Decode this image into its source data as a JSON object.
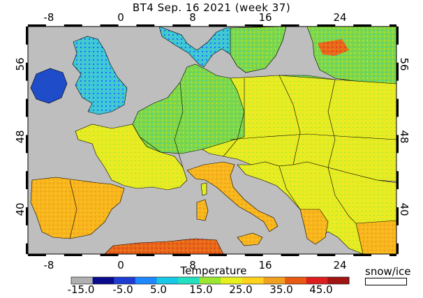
{
  "title": "BT4 Sep. 16 2021 (week 37)",
  "axes": {
    "lon_ticks": [
      "-8",
      "0",
      "8",
      "16",
      "24"
    ],
    "lat_ticks": [
      "56",
      "48",
      "40"
    ]
  },
  "legend": {
    "title": "Temperature",
    "tick_labels": [
      "-15.0",
      "-5.0",
      "5.0",
      "15.0",
      "25.0",
      "35.0",
      "45.0"
    ],
    "colors": [
      "#b0b0b0",
      "#0a0a8c",
      "#1e3cd2",
      "#1f88ff",
      "#18c8e6",
      "#22e0c0",
      "#9ae632",
      "#e6f01e",
      "#ffd21e",
      "#f0a01e",
      "#e65a14",
      "#dc1e1e",
      "#a01414"
    ],
    "snow_label": "snow/ice",
    "snow_color": "#ffffff"
  },
  "colors": {
    "sea": "#bebebe",
    "frame": "#000000"
  }
}
